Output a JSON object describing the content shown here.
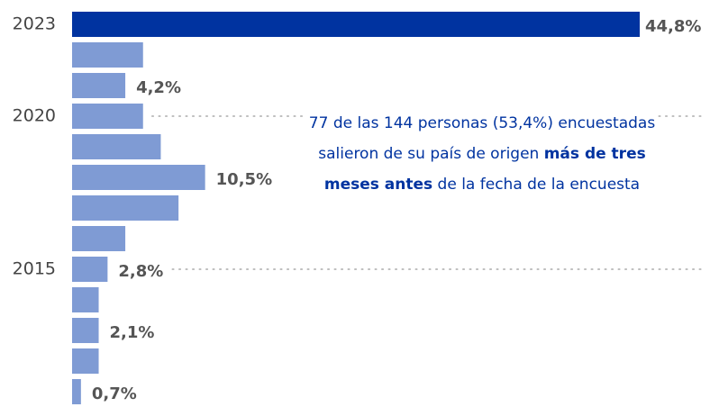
{
  "chart_data": {
    "type": "hbar",
    "categories": [
      "2023",
      null,
      null,
      "2020",
      null,
      null,
      null,
      null,
      "2015",
      null,
      null,
      null,
      null
    ],
    "values": [
      44.8,
      5.6,
      4.2,
      5.6,
      7.0,
      10.5,
      8.4,
      4.2,
      2.8,
      2.1,
      2.1,
      2.1,
      0.7
    ],
    "value_labels": [
      "44,8%",
      null,
      "4,2%",
      null,
      null,
      "10,5%",
      null,
      null,
      "2,8%",
      null,
      "2,1%",
      null,
      "0,7%"
    ],
    "colors": [
      "#0033a0",
      "#7f9bd4",
      "#7f9bd4",
      "#7f9bd4",
      "#7f9bd4",
      "#7f9bd4",
      "#7f9bd4",
      "#7f9bd4",
      "#7f9bd4",
      "#7f9bd4",
      "#7f9bd4",
      "#7f9bd4",
      "#7f9bd4"
    ],
    "annotation": {
      "before": "77 de las 144 personas (53,4%) encuestadas salieron de su país de origen ",
      "bold": "más de tres meses antes",
      "after": " de la fecha de la encuesta"
    }
  }
}
